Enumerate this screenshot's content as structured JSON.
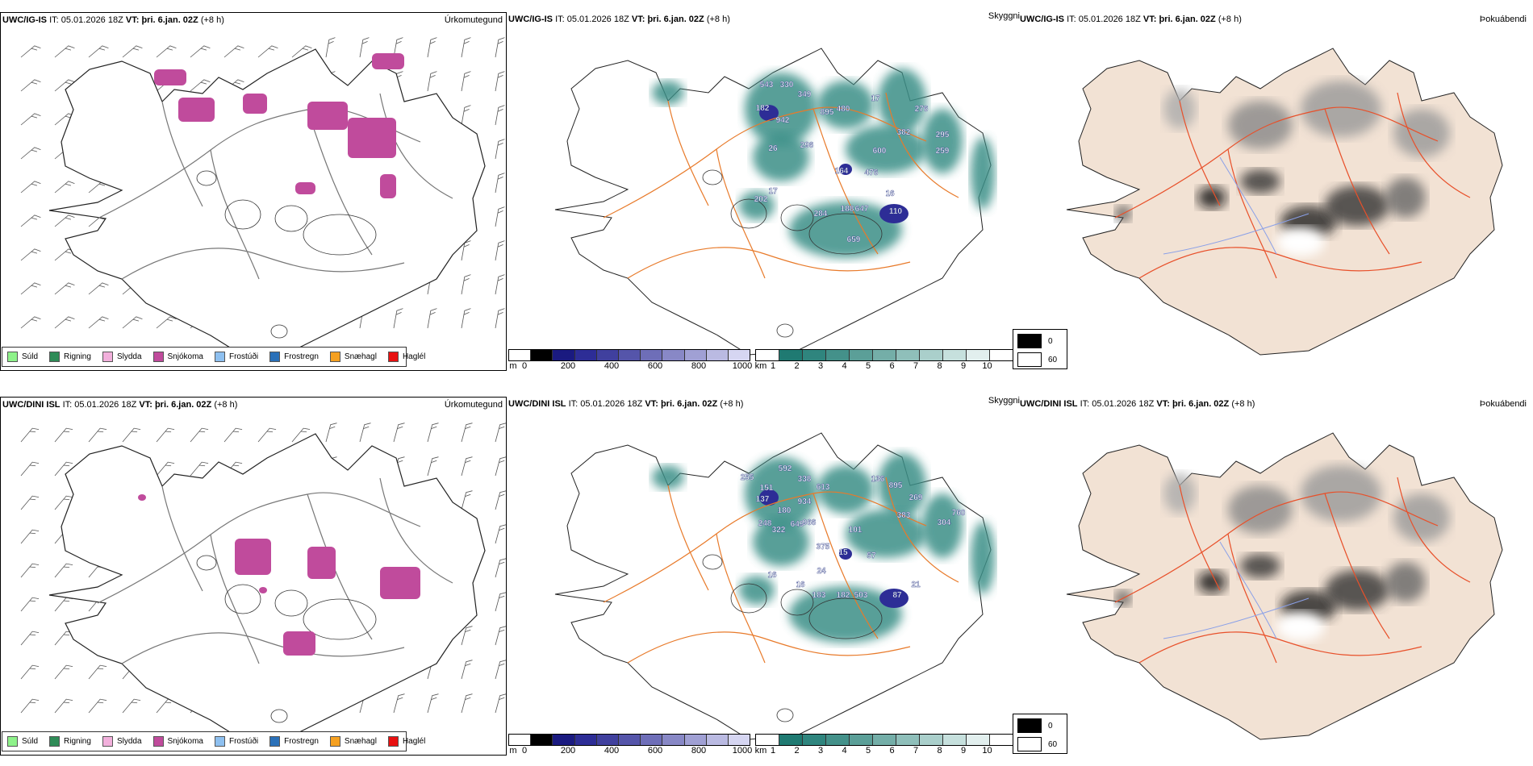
{
  "rows": [
    {
      "model": "UWC/IG-IS",
      "it_label": "IT:",
      "it_value": "05.01.2026 18Z",
      "vt_label": "VT:",
      "vt_value": "þri. 6.jan. 02Z",
      "lead": "(+8 h)",
      "visibility_labels": [
        "543",
        "330",
        "349",
        "182",
        "942",
        "895",
        "480",
        "17",
        "276",
        "382",
        "295",
        "259",
        "600",
        "26",
        "296",
        "164",
        "476",
        "202",
        "17",
        "284",
        "188",
        "647",
        "110",
        "659",
        "16"
      ]
    },
    {
      "model": "UWC/DINI ISL",
      "it_label": "IT:",
      "it_value": "05.01.2026 18Z",
      "vt_label": "VT:",
      "vt_value": "þri. 6.jan. 02Z",
      "lead": "(+8 h)",
      "visibility_labels": [
        "255",
        "592",
        "338",
        "151",
        "137",
        "613",
        "136",
        "895",
        "934",
        "180",
        "269",
        "383",
        "760",
        "304",
        "248",
        "322",
        "649",
        "966",
        "101",
        "375",
        "15",
        "57",
        "24",
        "16",
        "16",
        "183",
        "182",
        "503",
        "87",
        "21"
      ]
    }
  ],
  "panel_titles": {
    "precip_type": "Úrkomutegund",
    "visibility": "Skyggni",
    "fog": "Þokuábendi"
  },
  "precip_legend": [
    {
      "label": "Súld",
      "color": "#8ef28a"
    },
    {
      "label": "Rigning",
      "color": "#2e8b57"
    },
    {
      "label": "Slydda",
      "color": "#f2b0dc"
    },
    {
      "label": "Snjókoma",
      "color": "#c04b9c"
    },
    {
      "label": "Frostúði",
      "color": "#8ec0f0"
    },
    {
      "label": "Frostregn",
      "color": "#2a70b8"
    },
    {
      "label": "Snæhagl",
      "color": "#f5a020"
    },
    {
      "label": "Haglél",
      "color": "#e81010"
    }
  ],
  "height_bar": {
    "unit": "m",
    "ticks": [
      "0",
      "200",
      "400",
      "600",
      "800",
      "1000"
    ],
    "colors": [
      "#ffffff",
      "#000000",
      "#1a1a80",
      "#2d2d96",
      "#40409e",
      "#5555aa",
      "#6e6eb8",
      "#8888c6",
      "#a0a0d4",
      "#babae2",
      "#d6d6f2"
    ]
  },
  "visibility_bar": {
    "unit": "km",
    "ticks": [
      "1",
      "2",
      "3",
      "4",
      "5",
      "6",
      "7",
      "8",
      "9",
      "10"
    ],
    "colors": [
      "#ffffff",
      "#1f7a72",
      "#2f857e",
      "#44918a",
      "#5b9f98",
      "#74aea8",
      "#8fbfba",
      "#aacfcb",
      "#c6e0dd",
      "#e2efee",
      "#ffffff"
    ]
  },
  "fog_legend": [
    {
      "label": "0",
      "color": "#000000"
    },
    {
      "label": "60",
      "color": "#ffffff"
    }
  ]
}
